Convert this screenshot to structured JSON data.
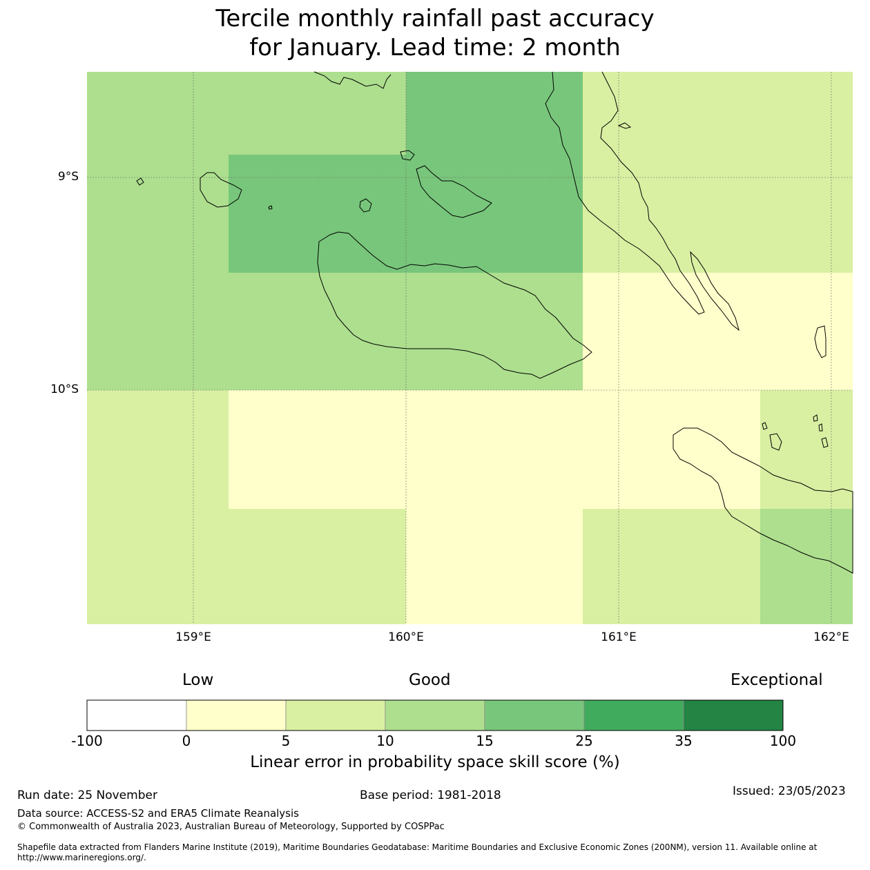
{
  "title": {
    "line1": "Tercile monthly rainfall past accuracy",
    "line2": "for January. Lead time: 2 month"
  },
  "map": {
    "lat_labels": [
      "9°S",
      "10°S"
    ],
    "lon_labels": [
      "159°E",
      "160°E",
      "161°E",
      "162°E"
    ],
    "land_outline_color": "#000000",
    "gridline_color": "#666666",
    "skill_cells": [
      {
        "region": "north-west",
        "class": "10-15",
        "color": "#addf8e"
      },
      {
        "region": "north-centre",
        "class": "15-25",
        "color": "#78c67b"
      },
      {
        "region": "west-centre",
        "class": "15-25",
        "color": "#78c67b"
      },
      {
        "region": "north-east",
        "class": "5-10",
        "color": "#d9efa2"
      },
      {
        "region": "centre",
        "class": "10-15",
        "color": "#addf8e"
      },
      {
        "region": "east-centre",
        "class": "0-5",
        "color": "#ffffcb"
      },
      {
        "region": "south-west",
        "class": "5-10",
        "color": "#d9efa2"
      },
      {
        "region": "south-centre",
        "class": "0-5",
        "color": "#ffffcb"
      },
      {
        "region": "south-east",
        "class": "10-15",
        "color": "#addf8e"
      }
    ]
  },
  "legend": {
    "categories": [
      "Low",
      "Good",
      "Exceptional"
    ],
    "ticks": [
      "-100",
      "0",
      "5",
      "10",
      "15",
      "25",
      "35",
      "100"
    ],
    "colors": [
      "#ffffff",
      "#ffffcb",
      "#d9efa2",
      "#addf8e",
      "#78c67b",
      "#41ab5d",
      "#238443"
    ],
    "title": "Linear error in probability space skill score (%)"
  },
  "footer": {
    "run_date": "Run date: 25 November",
    "base_period": "Base period: 1981-2018",
    "issued": "Issued: 23/05/2023",
    "data_source": "Data source: ACCESS-S2 and ERA5 Climate Reanalysis",
    "copyright": "© Commonwealth of Australia 2023, Australian Bureau of Meteorology, Supported by COSPPac",
    "shapefile": "Shapefile data extracted from Flanders Marine Institute (2019), Maritime Boundaries Geodatabase: Maritime Boundaries and Exclusive Economic Zones (200NM), version 11. Available online at http://www.marineregions.org/."
  }
}
